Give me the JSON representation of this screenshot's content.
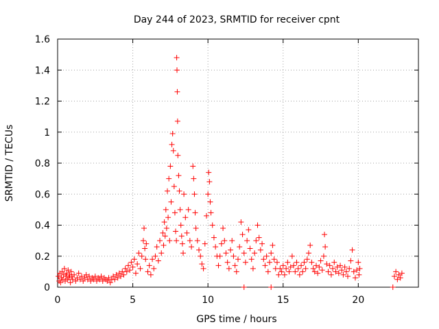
{
  "chart_data": {
    "type": "scatter",
    "title": "Day 244 of 2023, SRMTID for receiver cpnt",
    "xlabel": "GPS time / hours",
    "ylabel": "SRMTID / TECUs",
    "xlim": [
      0,
      24
    ],
    "ylim": [
      0,
      1.6
    ],
    "xticks": [
      0,
      5,
      10,
      15,
      20
    ],
    "xtick_labels": [
      "0",
      "5",
      "10",
      "15",
      "20"
    ],
    "yticks": [
      0,
      0.2,
      0.4,
      0.6,
      0.8,
      1.0,
      1.2,
      1.4,
      1.6
    ],
    "ytick_labels": [
      "0",
      "0.2",
      "0.4",
      "0.6",
      "0.8",
      "1",
      "1.2",
      "1.4",
      "1.6"
    ],
    "grid": true,
    "marker": "+",
    "colors": {
      "points": "#ff0000",
      "grid": "#a0a0a0",
      "axes": "#000000"
    },
    "series": [
      {
        "name": "SRMTID",
        "points": [
          [
            0.05,
            0.07
          ],
          [
            0.1,
            0.04
          ],
          [
            0.15,
            0.09
          ],
          [
            0.2,
            0.03
          ],
          [
            0.25,
            0.06
          ],
          [
            0.3,
            0.1
          ],
          [
            0.35,
            0.05
          ],
          [
            0.4,
            0.08
          ],
          [
            0.45,
            0.12
          ],
          [
            0.5,
            0.04
          ],
          [
            0.55,
            0.07
          ],
          [
            0.6,
            0.09
          ],
          [
            0.65,
            0.05
          ],
          [
            0.7,
            0.11
          ],
          [
            0.75,
            0.06
          ],
          [
            0.8,
            0.08
          ],
          [
            0.85,
            0.03
          ],
          [
            0.9,
            0.1
          ],
          [
            0.95,
            0.07
          ],
          [
            1.0,
            0.05
          ],
          [
            1.1,
            0.08
          ],
          [
            1.2,
            0.04
          ],
          [
            1.3,
            0.06
          ],
          [
            1.4,
            0.09
          ],
          [
            1.5,
            0.05
          ],
          [
            1.6,
            0.07
          ],
          [
            1.7,
            0.04
          ],
          [
            1.8,
            0.06
          ],
          [
            1.9,
            0.08
          ],
          [
            2.0,
            0.05
          ],
          [
            2.1,
            0.07
          ],
          [
            2.2,
            0.04
          ],
          [
            2.3,
            0.06
          ],
          [
            2.4,
            0.05
          ],
          [
            2.5,
            0.07
          ],
          [
            2.6,
            0.04
          ],
          [
            2.7,
            0.06
          ],
          [
            2.8,
            0.05
          ],
          [
            2.9,
            0.07
          ],
          [
            3.0,
            0.04
          ],
          [
            3.1,
            0.06
          ],
          [
            3.2,
            0.05
          ],
          [
            3.3,
            0.04
          ],
          [
            3.4,
            0.06
          ],
          [
            3.5,
            0.03
          ],
          [
            3.6,
            0.05
          ],
          [
            3.7,
            0.07
          ],
          [
            3.8,
            0.05
          ],
          [
            3.9,
            0.08
          ],
          [
            4.0,
            0.06
          ],
          [
            4.1,
            0.09
          ],
          [
            4.2,
            0.07
          ],
          [
            4.3,
            0.1
          ],
          [
            4.4,
            0.08
          ],
          [
            4.5,
            0.12
          ],
          [
            4.6,
            0.1
          ],
          [
            4.7,
            0.14
          ],
          [
            4.8,
            0.11
          ],
          [
            4.9,
            0.16
          ],
          [
            5.0,
            0.13
          ],
          [
            5.1,
            0.18
          ],
          [
            5.2,
            0.09
          ],
          [
            5.3,
            0.15
          ],
          [
            5.4,
            0.22
          ],
          [
            5.5,
            0.12
          ],
          [
            5.6,
            0.2
          ],
          [
            5.7,
            0.3
          ],
          [
            5.75,
            0.38
          ],
          [
            5.8,
            0.25
          ],
          [
            5.85,
            0.18
          ],
          [
            5.9,
            0.28
          ],
          [
            6.0,
            0.1
          ],
          [
            6.1,
            0.14
          ],
          [
            6.2,
            0.08
          ],
          [
            6.3,
            0.18
          ],
          [
            6.4,
            0.12
          ],
          [
            6.5,
            0.2
          ],
          [
            6.6,
            0.26
          ],
          [
            6.7,
            0.17
          ],
          [
            6.8,
            0.3
          ],
          [
            6.9,
            0.22
          ],
          [
            7.0,
            0.35
          ],
          [
            7.05,
            0.27
          ],
          [
            7.1,
            0.42
          ],
          [
            7.15,
            0.33
          ],
          [
            7.2,
            0.5
          ],
          [
            7.25,
            0.38
          ],
          [
            7.3,
            0.62
          ],
          [
            7.35,
            0.45
          ],
          [
            7.4,
            0.7
          ],
          [
            7.45,
            0.3
          ],
          [
            7.5,
            0.78
          ],
          [
            7.55,
            0.55
          ],
          [
            7.6,
            0.92
          ],
          [
            7.65,
            0.99
          ],
          [
            7.7,
            0.88
          ],
          [
            7.75,
            0.65
          ],
          [
            7.8,
            0.48
          ],
          [
            7.85,
            0.36
          ],
          [
            7.9,
            0.3
          ],
          [
            7.92,
            1.48
          ],
          [
            7.94,
            1.4
          ],
          [
            7.96,
            1.26
          ],
          [
            7.98,
            1.07
          ],
          [
            8.0,
            0.85
          ],
          [
            8.05,
            0.72
          ],
          [
            8.1,
            0.62
          ],
          [
            8.15,
            0.5
          ],
          [
            8.2,
            0.4
          ],
          [
            8.25,
            0.33
          ],
          [
            8.3,
            0.28
          ],
          [
            8.35,
            0.22
          ],
          [
            8.4,
            0.6
          ],
          [
            8.5,
            0.45
          ],
          [
            8.6,
            0.35
          ],
          [
            8.7,
            0.5
          ],
          [
            8.8,
            0.3
          ],
          [
            8.9,
            0.26
          ],
          [
            9.0,
            0.78
          ],
          [
            9.05,
            0.7
          ],
          [
            9.1,
            0.6
          ],
          [
            9.15,
            0.48
          ],
          [
            9.2,
            0.38
          ],
          [
            9.3,
            0.3
          ],
          [
            9.4,
            0.24
          ],
          [
            9.5,
            0.2
          ],
          [
            9.6,
            0.15
          ],
          [
            9.7,
            0.12
          ],
          [
            9.8,
            0.28
          ],
          [
            9.9,
            0.46
          ],
          [
            10.0,
            0.6
          ],
          [
            10.05,
            0.74
          ],
          [
            10.1,
            0.68
          ],
          [
            10.15,
            0.55
          ],
          [
            10.2,
            0.48
          ],
          [
            10.3,
            0.4
          ],
          [
            10.4,
            0.32
          ],
          [
            10.5,
            0.26
          ],
          [
            10.6,
            0.2
          ],
          [
            10.7,
            0.14
          ],
          [
            10.8,
            0.2
          ],
          [
            10.9,
            0.28
          ],
          [
            11.0,
            0.38
          ],
          [
            11.1,
            0.3
          ],
          [
            11.2,
            0.22
          ],
          [
            11.3,
            0.16
          ],
          [
            11.4,
            0.12
          ],
          [
            11.5,
            0.24
          ],
          [
            11.6,
            0.3
          ],
          [
            11.7,
            0.2
          ],
          [
            11.8,
            0.14
          ],
          [
            11.9,
            0.1
          ],
          [
            12.0,
            0.18
          ],
          [
            12.1,
            0.26
          ],
          [
            12.2,
            0.42
          ],
          [
            12.3,
            0.34
          ],
          [
            12.4,
            0.22
          ],
          [
            12.5,
            0.16
          ],
          [
            12.6,
            0.3
          ],
          [
            12.7,
            0.37
          ],
          [
            12.8,
            0.25
          ],
          [
            12.9,
            0.18
          ],
          [
            13.0,
            0.12
          ],
          [
            13.1,
            0.22
          ],
          [
            13.2,
            0.3
          ],
          [
            13.3,
            0.4
          ],
          [
            13.4,
            0.32
          ],
          [
            13.5,
            0.24
          ],
          [
            13.6,
            0.28
          ],
          [
            13.7,
            0.18
          ],
          [
            13.8,
            0.14
          ],
          [
            13.9,
            0.2
          ],
          [
            14.0,
            0.1
          ],
          [
            14.1,
            0.16
          ],
          [
            14.2,
            0.22
          ],
          [
            14.3,
            0.27
          ],
          [
            14.4,
            0.18
          ],
          [
            14.5,
            0.12
          ],
          [
            14.6,
            0.16
          ],
          [
            14.7,
            0.08
          ],
          [
            14.8,
            0.12
          ],
          [
            14.9,
            0.1
          ],
          [
            15.0,
            0.14
          ],
          [
            15.1,
            0.08
          ],
          [
            15.2,
            0.12
          ],
          [
            15.3,
            0.16
          ],
          [
            15.4,
            0.1
          ],
          [
            15.5,
            0.13
          ],
          [
            15.6,
            0.2
          ],
          [
            15.7,
            0.14
          ],
          [
            15.8,
            0.1
          ],
          [
            15.9,
            0.16
          ],
          [
            16.0,
            0.12
          ],
          [
            16.1,
            0.08
          ],
          [
            16.2,
            0.14
          ],
          [
            16.3,
            0.1
          ],
          [
            16.4,
            0.16
          ],
          [
            16.5,
            0.12
          ],
          [
            16.6,
            0.18
          ],
          [
            16.7,
            0.22
          ],
          [
            16.8,
            0.27
          ],
          [
            16.9,
            0.16
          ],
          [
            17.0,
            0.12
          ],
          [
            17.1,
            0.1
          ],
          [
            17.2,
            0.14
          ],
          [
            17.3,
            0.09
          ],
          [
            17.4,
            0.13
          ],
          [
            17.5,
            0.17
          ],
          [
            17.6,
            0.11
          ],
          [
            17.7,
            0.2
          ],
          [
            17.75,
            0.34
          ],
          [
            17.8,
            0.26
          ],
          [
            17.9,
            0.15
          ],
          [
            18.0,
            0.1
          ],
          [
            18.1,
            0.14
          ],
          [
            18.2,
            0.08
          ],
          [
            18.3,
            0.12
          ],
          [
            18.4,
            0.16
          ],
          [
            18.5,
            0.1
          ],
          [
            18.6,
            0.13
          ],
          [
            18.7,
            0.09
          ],
          [
            18.8,
            0.14
          ],
          [
            18.9,
            0.11
          ],
          [
            19.0,
            0.08
          ],
          [
            19.1,
            0.13
          ],
          [
            19.2,
            0.1
          ],
          [
            19.3,
            0.07
          ],
          [
            19.4,
            0.12
          ],
          [
            19.5,
            0.17
          ],
          [
            19.6,
            0.24
          ],
          [
            19.7,
            0.1
          ],
          [
            19.8,
            0.06
          ],
          [
            19.9,
            0.11
          ],
          [
            20.0,
            0.16
          ],
          [
            20.05,
            0.08
          ],
          [
            20.1,
            0.12
          ],
          [
            12.4,
            0.0
          ],
          [
            14.2,
            0.0
          ],
          [
            22.3,
            0.0
          ],
          [
            22.4,
            0.07
          ],
          [
            22.5,
            0.1
          ],
          [
            22.6,
            0.05
          ],
          [
            22.7,
            0.08
          ],
          [
            22.8,
            0.06
          ],
          [
            22.9,
            0.09
          ]
        ]
      }
    ]
  }
}
